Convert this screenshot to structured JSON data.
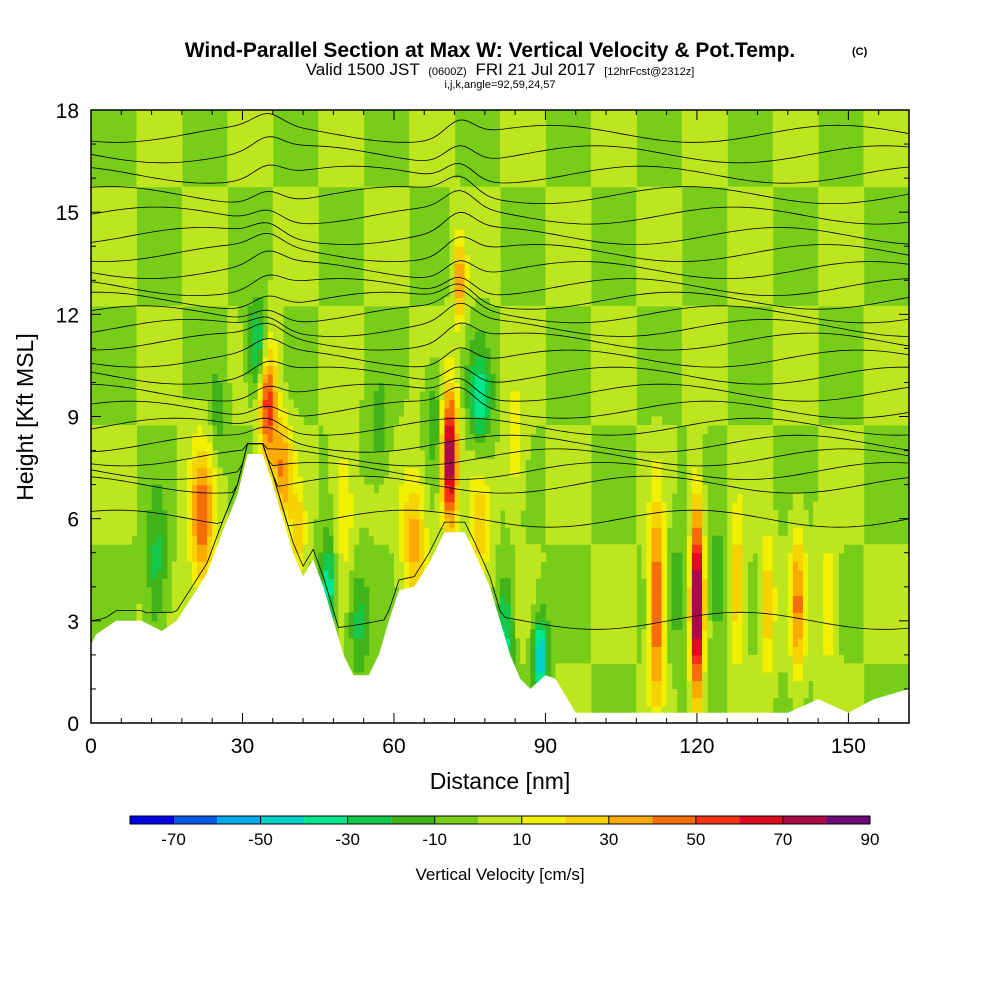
{
  "chart_data": {
    "type": "heatmap",
    "title": "Wind-Parallel Section at Max W: Vertical Velocity & Pot.Temp.",
    "title_mark": "(C)",
    "subtitle_parts": [
      "Valid 1500 JST",
      "(0600Z)",
      "FRI 21 Jul 2017",
      "[12hrFcst@2312z]"
    ],
    "subtitle_line2": "i,j,k,angle=92,59,24,57",
    "xlabel": "Distance [nm]",
    "ylabel": "Height [Kft MSL]",
    "xlim": [
      0,
      162
    ],
    "ylim": [
      0,
      18
    ],
    "xticks": [
      0,
      30,
      60,
      90,
      120,
      150
    ],
    "yticks": [
      0,
      3,
      6,
      9,
      12,
      15,
      18
    ],
    "grid": false,
    "colorbar": {
      "title": "Vertical Velocity [cm/s]",
      "ticks": [
        -70,
        -50,
        -30,
        -10,
        10,
        30,
        50,
        70,
        90
      ],
      "bounds": [
        -80,
        90
      ],
      "colors": [
        "#0000e6",
        "#005ae6",
        "#00aaf0",
        "#00d2c8",
        "#00e68c",
        "#14c84b",
        "#41b419",
        "#78cd19",
        "#bee61e",
        "#f0f000",
        "#f5d200",
        "#faaa00",
        "#f56e0a",
        "#f53214",
        "#dc0a1e",
        "#aa0a46",
        "#6e0a78",
        "#50147d"
      ]
    },
    "terrain_profile": [
      {
        "x": 0,
        "h": 2.3
      },
      {
        "x": 1,
        "h": 2.6
      },
      {
        "x": 5,
        "h": 3.0
      },
      {
        "x": 10,
        "h": 3.0
      },
      {
        "x": 14,
        "h": 2.7
      },
      {
        "x": 17,
        "h": 3.0
      },
      {
        "x": 20,
        "h": 3.7
      },
      {
        "x": 23,
        "h": 4.4
      },
      {
        "x": 26,
        "h": 5.6
      },
      {
        "x": 29,
        "h": 6.7
      },
      {
        "x": 31,
        "h": 7.9
      },
      {
        "x": 34,
        "h": 7.9
      },
      {
        "x": 36,
        "h": 7.0
      },
      {
        "x": 38,
        "h": 6.0
      },
      {
        "x": 40,
        "h": 5.0
      },
      {
        "x": 42,
        "h": 4.3
      },
      {
        "x": 44,
        "h": 4.8
      },
      {
        "x": 46,
        "h": 4.0
      },
      {
        "x": 48,
        "h": 3.0
      },
      {
        "x": 50,
        "h": 2.0
      },
      {
        "x": 52,
        "h": 1.4
      },
      {
        "x": 55,
        "h": 1.4
      },
      {
        "x": 57,
        "h": 2.0
      },
      {
        "x": 59,
        "h": 3.0
      },
      {
        "x": 61,
        "h": 3.9
      },
      {
        "x": 64,
        "h": 4.0
      },
      {
        "x": 67,
        "h": 4.7
      },
      {
        "x": 70,
        "h": 5.6
      },
      {
        "x": 74,
        "h": 5.6
      },
      {
        "x": 76,
        "h": 5.0
      },
      {
        "x": 79,
        "h": 4.0
      },
      {
        "x": 81,
        "h": 3.0
      },
      {
        "x": 83,
        "h": 2.0
      },
      {
        "x": 85,
        "h": 1.3
      },
      {
        "x": 87,
        "h": 1.0
      },
      {
        "x": 90,
        "h": 1.4
      },
      {
        "x": 92,
        "h": 1.3
      },
      {
        "x": 94,
        "h": 0.8
      },
      {
        "x": 96,
        "h": 0.3
      },
      {
        "x": 138,
        "h": 0.3
      },
      {
        "x": 144,
        "h": 0.7
      },
      {
        "x": 150,
        "h": 0.3
      },
      {
        "x": 155,
        "h": 0.7
      },
      {
        "x": 162,
        "h": 1.0
      }
    ],
    "updrafts": [
      {
        "x": 22,
        "h": 6.0,
        "w": 45,
        "dx": 2.5,
        "dh": 2.2
      },
      {
        "x": 35,
        "h": 9.5,
        "w": 58,
        "dx": 1.8,
        "dh": 1.8
      },
      {
        "x": 38,
        "h": 7.5,
        "w": 38,
        "dx": 2.0,
        "dh": 1.5
      },
      {
        "x": 41,
        "h": 5.5,
        "w": 30,
        "dx": 1.5,
        "dh": 1.2
      },
      {
        "x": 50,
        "h": 6.5,
        "w": 25,
        "dx": 2.0,
        "dh": 1.8
      },
      {
        "x": 64,
        "h": 5.5,
        "w": 35,
        "dx": 2.5,
        "dh": 2.0
      },
      {
        "x": 71,
        "h": 7.8,
        "w": 85,
        "dx": 1.6,
        "dh": 2.0
      },
      {
        "x": 73,
        "h": 13.0,
        "w": 40,
        "dx": 1.2,
        "dh": 1.3
      },
      {
        "x": 77,
        "h": 5.5,
        "w": 25,
        "dx": 2.0,
        "dh": 2.0
      },
      {
        "x": 84,
        "h": 8.0,
        "w": 18,
        "dx": 2.0,
        "dh": 1.8
      },
      {
        "x": 112,
        "h": 3.5,
        "w": 60,
        "dx": 1.4,
        "dh": 2.8
      },
      {
        "x": 120,
        "h": 3.5,
        "w": 88,
        "dx": 1.2,
        "dh": 3.0
      },
      {
        "x": 128,
        "h": 4.0,
        "w": 30,
        "dx": 1.5,
        "dh": 2.2
      },
      {
        "x": 134,
        "h": 3.5,
        "w": 30,
        "dx": 1.4,
        "dh": 2.0
      },
      {
        "x": 140,
        "h": 3.5,
        "w": 40,
        "dx": 1.5,
        "dh": 2.2
      },
      {
        "x": 146,
        "h": 3.5,
        "w": 22,
        "dx": 1.5,
        "dh": 2.0
      }
    ],
    "downdrafts": [
      {
        "x": 13,
        "h": 4.5,
        "w": -25,
        "dx": 2.0,
        "dh": 2.0
      },
      {
        "x": 25,
        "h": 9.0,
        "w": -15,
        "dx": 1.6,
        "dh": 1.5
      },
      {
        "x": 33,
        "h": 11.0,
        "w": -40,
        "dx": 2.0,
        "dh": 1.3
      },
      {
        "x": 47,
        "h": 4.0,
        "w": -40,
        "dx": 1.5,
        "dh": 1.5
      },
      {
        "x": 53,
        "h": 3.0,
        "w": -25,
        "dx": 2.0,
        "dh": 1.5
      },
      {
        "x": 57,
        "h": 8.5,
        "w": -15,
        "dx": 2.0,
        "dh": 1.5
      },
      {
        "x": 68,
        "h": 9.0,
        "w": -20,
        "dx": 2.0,
        "dh": 1.5
      },
      {
        "x": 77,
        "h": 9.5,
        "w": -35,
        "dx": 2.2,
        "dh": 1.5
      },
      {
        "x": 82,
        "h": 2.5,
        "w": -35,
        "dx": 1.6,
        "dh": 1.8
      },
      {
        "x": 89,
        "h": 2.0,
        "w": -50,
        "dx": 1.5,
        "dh": 1.2
      },
      {
        "x": 116,
        "h": 4.0,
        "w": -15,
        "dx": 1.5,
        "dh": 2.0
      },
      {
        "x": 124,
        "h": 4.0,
        "w": -18,
        "dx": 1.5,
        "dh": 2.0
      }
    ],
    "pot_temp_isolines": [
      3.0,
      6.0,
      7.0,
      7.4,
      7.8,
      8.2,
      8.7,
      9.2,
      9.7,
      10.2,
      10.7,
      11.2,
      11.6,
      12.0,
      12.4,
      12.8,
      13.3,
      13.8,
      14.3,
      14.9,
      15.5,
      16.1,
      16.7,
      17.3
    ]
  }
}
